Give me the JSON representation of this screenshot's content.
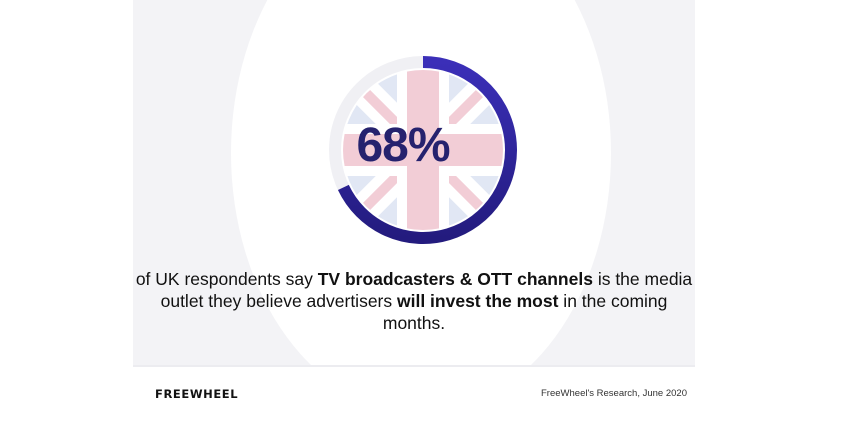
{
  "chart_data": {
    "type": "pie",
    "values": [
      68,
      32
    ],
    "value_label": "68%",
    "colors": {
      "filled": "#2a1d8e",
      "filled_end": "#4a3ad6",
      "remaining": "#f0f0f4"
    },
    "background": "union-jack-flag"
  },
  "caption": {
    "part1": "of UK respondents say ",
    "bold1": "TV broadcasters & OTT channels",
    "part2": " is the media outlet they believe advertisers ",
    "bold2": "will invest the most",
    "part3": " in the coming months."
  },
  "footer": {
    "brand": "FREEWHEEL",
    "source": "FreeWheel's Research, June 2020"
  },
  "colors": {
    "accent": "#25226e",
    "flag_red": "#e8a5b5",
    "flag_blue": "#c9d3ec"
  }
}
